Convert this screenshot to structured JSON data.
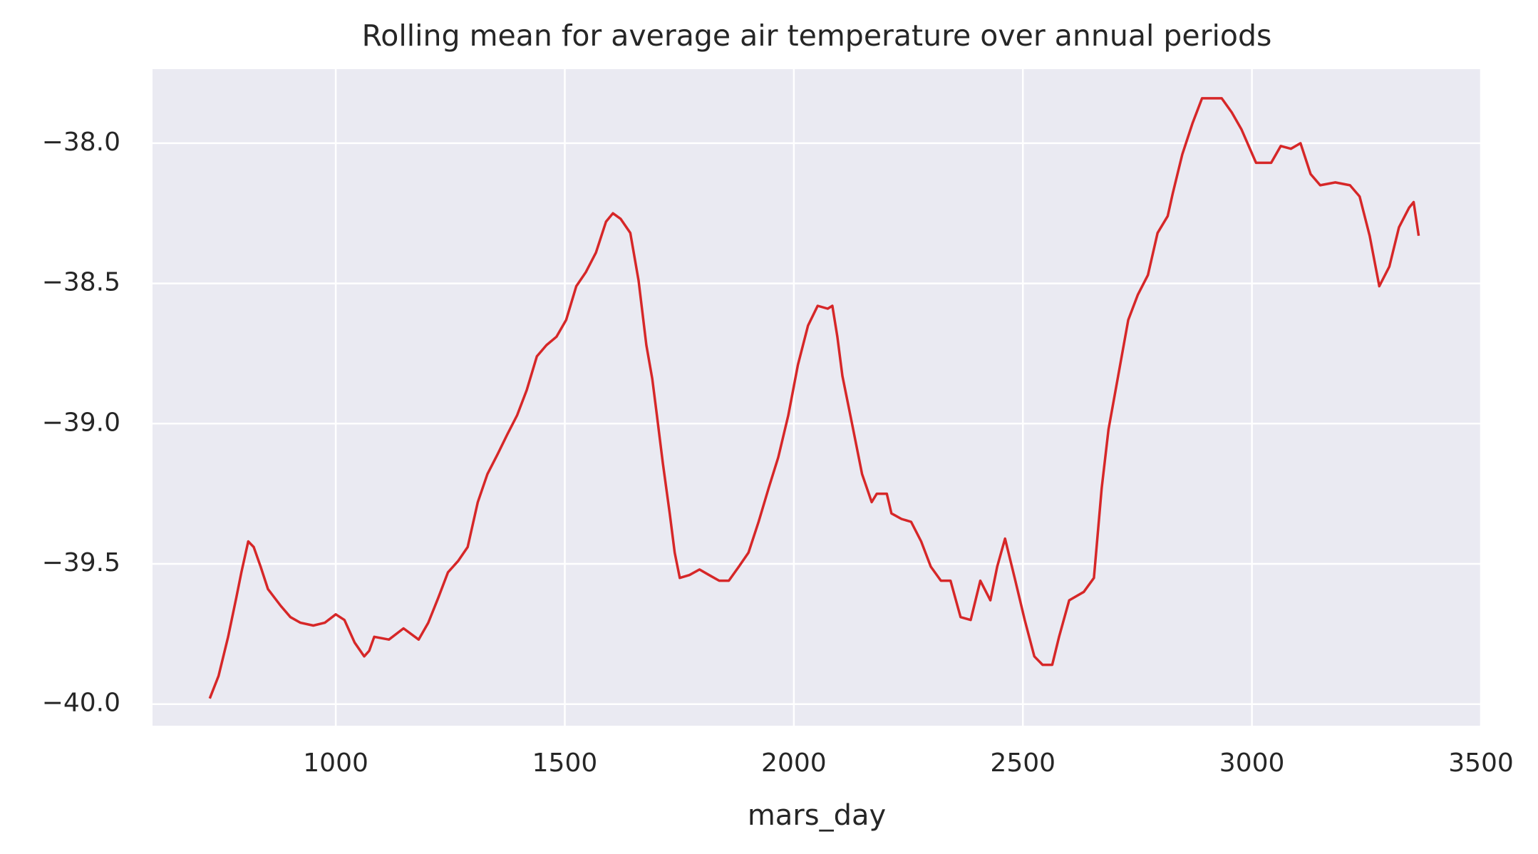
{
  "chart_data": {
    "type": "line",
    "title": "Rolling mean for average air temperature over annual periods",
    "xlabel": "mars_day",
    "x": [
      725,
      744,
      765,
      783,
      794,
      809,
      821,
      836,
      852,
      880,
      901,
      923,
      951,
      976,
      1000,
      1019,
      1041,
      1062,
      1073,
      1084,
      1116,
      1148,
      1181,
      1202,
      1224,
      1245,
      1267,
      1288,
      1310,
      1331,
      1353,
      1374,
      1396,
      1417,
      1439,
      1460,
      1482,
      1503,
      1525,
      1546,
      1568,
      1590,
      1605,
      1622,
      1643,
      1661,
      1678,
      1691,
      1701,
      1714,
      1729,
      1740,
      1751,
      1772,
      1794,
      1815,
      1837,
      1858,
      1880,
      1901,
      1923,
      1945,
      1966,
      1988,
      2009,
      2031,
      2052,
      2074,
      2084,
      2095,
      2106,
      2127,
      2149,
      2170,
      2181,
      2203,
      2213,
      2235,
      2256,
      2278,
      2299,
      2321,
      2342,
      2364,
      2386,
      2407,
      2429,
      2444,
      2461,
      2482,
      2504,
      2525,
      2543,
      2564,
      2579,
      2601,
      2633,
      2655,
      2672,
      2687,
      2708,
      2730,
      2751,
      2773,
      2794,
      2816,
      2827,
      2848,
      2870,
      2891,
      2913,
      2934,
      2956,
      2977,
      3009,
      3042,
      3063,
      3085,
      3106,
      3128,
      3149,
      3182,
      3214,
      3235,
      3257,
      3278,
      3300,
      3321,
      3343,
      3353,
      3364
    ],
    "series": [
      {
        "color": "#d62728",
        "values": [
          -39.98,
          -39.9,
          -39.76,
          -39.62,
          -39.53,
          -39.42,
          -39.44,
          -39.51,
          -39.59,
          -39.65,
          -39.69,
          -39.71,
          -39.72,
          -39.71,
          -39.68,
          -39.7,
          -39.78,
          -39.83,
          -39.81,
          -39.76,
          -39.77,
          -39.73,
          -39.77,
          -39.71,
          -39.62,
          -39.53,
          -39.49,
          -39.44,
          -39.28,
          -39.18,
          -39.11,
          -39.04,
          -38.97,
          -38.88,
          -38.76,
          -38.72,
          -38.69,
          -38.63,
          -38.51,
          -38.46,
          -38.39,
          -38.28,
          -38.25,
          -38.27,
          -38.32,
          -38.49,
          -38.72,
          -38.84,
          -38.97,
          -39.14,
          -39.32,
          -39.46,
          -39.55,
          -39.54,
          -39.52,
          -39.54,
          -39.56,
          -39.56,
          -39.51,
          -39.46,
          -39.35,
          -39.23,
          -39.12,
          -38.97,
          -38.79,
          -38.65,
          -38.58,
          -38.59,
          -38.58,
          -38.69,
          -38.83,
          -39.0,
          -39.18,
          -39.28,
          -39.25,
          -39.25,
          -39.32,
          -39.34,
          -39.35,
          -39.42,
          -39.51,
          -39.56,
          -39.56,
          -39.69,
          -39.7,
          -39.56,
          -39.63,
          -39.51,
          -39.41,
          -39.55,
          -39.7,
          -39.83,
          -39.86,
          -39.86,
          -39.76,
          -39.63,
          -39.6,
          -39.55,
          -39.23,
          -39.02,
          -38.83,
          -38.63,
          -38.54,
          -38.47,
          -38.32,
          -38.26,
          -38.18,
          -38.04,
          -37.93,
          -37.84,
          -37.84,
          -37.84,
          -37.89,
          -37.95,
          -38.07,
          -38.07,
          -38.01,
          -38.02,
          -38.0,
          -38.11,
          -38.15,
          -38.14,
          -38.15,
          -38.19,
          -38.33,
          -38.51,
          -38.44,
          -38.3,
          -38.23,
          -38.21,
          -38.33
        ]
      }
    ],
    "xlim": [
      600,
      3500
    ],
    "ylim": [
      -40.077,
      -37.736
    ],
    "xticks": [
      1000,
      1500,
      2000,
      2500,
      3000,
      3500
    ],
    "yticks": [
      {
        "value": -40.0,
        "label": "−40.0"
      },
      {
        "value": -39.5,
        "label": "−39.5"
      },
      {
        "value": -39.0,
        "label": "−39.0"
      },
      {
        "value": -38.5,
        "label": "−38.5"
      },
      {
        "value": -38.0,
        "label": "−38.0"
      }
    ],
    "grid": true
  }
}
